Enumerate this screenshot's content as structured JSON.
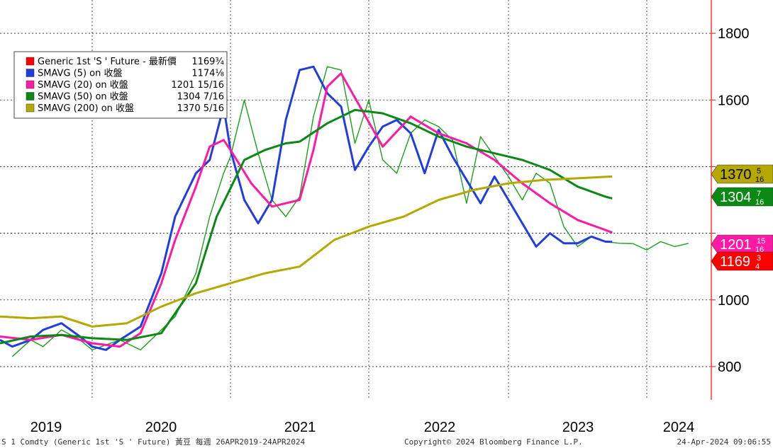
{
  "chart_data": {
    "type": "line",
    "title": "",
    "ylim": [
      700,
      1900
    ],
    "y_ticks": [
      {
        "value": 800,
        "label": "800"
      },
      {
        "value": 1000,
        "label": "1000"
      },
      {
        "value": 1200,
        "label": ""
      },
      {
        "value": 1400,
        "label": ""
      },
      {
        "value": 1600,
        "label": "1600"
      },
      {
        "value": 1800,
        "label": "1800"
      }
    ],
    "x_years": [
      "2019",
      "2020",
      "2021",
      "2022",
      "2023",
      "2024"
    ],
    "x_range": [
      2019.25,
      2024.5
    ],
    "grid": true,
    "legend_position": "top-left",
    "legend": [
      {
        "name": "Generic 1st 'S ' Future - 最新價",
        "value": "1169¾",
        "color": "#ff0000"
      },
      {
        "name": "SMAVG (5)  on 收盤",
        "value": "1174⅛",
        "color": "#1f3de0"
      },
      {
        "name": "SMAVG (20)  on 收盤",
        "value": "1201 15/16",
        "color": "#ff1aa6"
      },
      {
        "name": "SMAVG (50)  on 收盤",
        "value": "1304 7/16",
        "color": "#0a8a14"
      },
      {
        "name": "SMAVG (200)  on 收盤",
        "value": "1370 5/16",
        "color": "#b5a800"
      }
    ],
    "series": [
      {
        "name": "Generic 1st 'S ' Future - 最新價",
        "color": "#1aa01a",
        "x": [
          2019.35,
          2019.5,
          2019.6,
          2019.75,
          2019.9,
          2020.0,
          2020.2,
          2020.35,
          2020.45,
          2020.6,
          2020.75,
          2020.85,
          2020.95,
          2021.0,
          2021.1,
          2021.2,
          2021.3,
          2021.4,
          2021.5,
          2021.6,
          2021.7,
          2021.8,
          2021.9,
          2022.0,
          2022.1,
          2022.2,
          2022.3,
          2022.4,
          2022.5,
          2022.6,
          2022.7,
          2022.8,
          2022.9,
          2023.0,
          2023.1,
          2023.2,
          2023.3,
          2023.4,
          2023.5,
          2023.6,
          2023.7,
          2023.8,
          2023.9,
          2024.0,
          2024.1,
          2024.2,
          2024.3
        ],
        "values": [
          830,
          880,
          860,
          910,
          880,
          850,
          880,
          850,
          890,
          950,
          1080,
          1250,
          1380,
          1430,
          1600,
          1440,
          1300,
          1250,
          1310,
          1550,
          1700,
          1690,
          1470,
          1600,
          1420,
          1380,
          1500,
          1540,
          1520,
          1480,
          1290,
          1490,
          1430,
          1370,
          1300,
          1380,
          1350,
          1220,
          1160,
          1190,
          1175,
          1170,
          1169,
          1150,
          1175,
          1160,
          1169.75
        ]
      },
      {
        "name": "SMAVG (5)",
        "color": "#1f3de0",
        "x": [
          2019.25,
          2019.35,
          2019.5,
          2019.6,
          2019.75,
          2019.9,
          2020.0,
          2020.1,
          2020.2,
          2020.35,
          2020.5,
          2020.6,
          2020.75,
          2020.85,
          2020.95,
          2021.0,
          2021.1,
          2021.2,
          2021.3,
          2021.4,
          2021.5,
          2021.6,
          2021.7,
          2021.8,
          2021.9,
          2022.0,
          2022.1,
          2022.2,
          2022.3,
          2022.4,
          2022.5,
          2022.6,
          2022.7,
          2022.8,
          2022.9,
          2023.0,
          2023.1,
          2023.2,
          2023.3,
          2023.4,
          2023.5,
          2023.6,
          2023.7,
          2023.75
        ],
        "values": [
          880,
          860,
          880,
          910,
          930,
          890,
          860,
          850,
          880,
          920,
          1080,
          1250,
          1380,
          1420,
          1580,
          1450,
          1300,
          1230,
          1300,
          1540,
          1690,
          1700,
          1620,
          1580,
          1390,
          1460,
          1520,
          1540,
          1500,
          1380,
          1510,
          1430,
          1360,
          1290,
          1370,
          1300,
          1230,
          1160,
          1200,
          1170,
          1170,
          1190,
          1175,
          1174.1
        ]
      },
      {
        "name": "SMAVG (20)",
        "color": "#ff1aa6",
        "x": [
          2019.25,
          2019.5,
          2019.75,
          2020.0,
          2020.2,
          2020.35,
          2020.5,
          2020.6,
          2020.75,
          2020.85,
          2020.95,
          2021.0,
          2021.15,
          2021.3,
          2021.5,
          2021.6,
          2021.7,
          2021.8,
          2021.95,
          2022.1,
          2022.3,
          2022.5,
          2022.7,
          2022.9,
          2023.1,
          2023.3,
          2023.5,
          2023.7,
          2023.75
        ],
        "values": [
          890,
          880,
          895,
          870,
          860,
          900,
          1050,
          1180,
          1340,
          1460,
          1480,
          1450,
          1350,
          1280,
          1300,
          1450,
          1640,
          1680,
          1570,
          1460,
          1550,
          1500,
          1470,
          1420,
          1350,
          1290,
          1240,
          1210,
          1201.9
        ]
      },
      {
        "name": "SMAVG (50)",
        "color": "#0a8a14",
        "x": [
          2019.25,
          2019.5,
          2019.75,
          2020.0,
          2020.25,
          2020.5,
          2020.75,
          2020.9,
          2021.1,
          2021.25,
          2021.4,
          2021.5,
          2021.7,
          2021.9,
          2022.1,
          2022.3,
          2022.5,
          2022.7,
          2022.9,
          2023.1,
          2023.3,
          2023.5,
          2023.7,
          2023.75
        ],
        "values": [
          870,
          890,
          895,
          885,
          880,
          900,
          1050,
          1250,
          1420,
          1450,
          1470,
          1475,
          1530,
          1570,
          1560,
          1530,
          1490,
          1460,
          1440,
          1420,
          1390,
          1340,
          1310,
          1304.4
        ]
      },
      {
        "name": "SMAVG (200)",
        "color": "#b5a800",
        "x": [
          2019.25,
          2019.5,
          2019.75,
          2020.0,
          2020.25,
          2020.5,
          2020.75,
          2021.0,
          2021.25,
          2021.5,
          2021.75,
          2022.0,
          2022.25,
          2022.5,
          2022.75,
          2023.0,
          2023.25,
          2023.5,
          2023.75
        ],
        "values": [
          950,
          945,
          950,
          920,
          930,
          980,
          1020,
          1050,
          1080,
          1100,
          1180,
          1220,
          1250,
          1300,
          1330,
          1350,
          1360,
          1365,
          1370.3
        ]
      }
    ],
    "value_tags": [
      {
        "label": "1370 5/16",
        "display": "1370",
        "frac": "5/16",
        "value": 1370.3,
        "bg": "#b5a800",
        "fg": "#000000"
      },
      {
        "label": "1304 7/16",
        "display": "1304",
        "frac": "7/16",
        "value": 1304.4,
        "bg": "#0a8a14",
        "fg": "#ffffff"
      },
      {
        "label": "1201 15/16",
        "display": "1201",
        "frac": "15/16",
        "value": 1201.9,
        "bg": "#ff1aa6",
        "fg": "#ffffff"
      },
      {
        "label": "1169¾",
        "display": "1169",
        "frac": "3/4",
        "value": 1169.75,
        "bg": "#ff0000",
        "fg": "#ffffff"
      }
    ]
  },
  "footer": {
    "left": "S 1 Comdty (Generic 1st 'S ' Future) 黃豆  每週 26APR2019-24APR2024",
    "center": "Copyright© 2024 Bloomberg Finance L.P.",
    "right": "24-Apr-2024 09:06:55"
  }
}
